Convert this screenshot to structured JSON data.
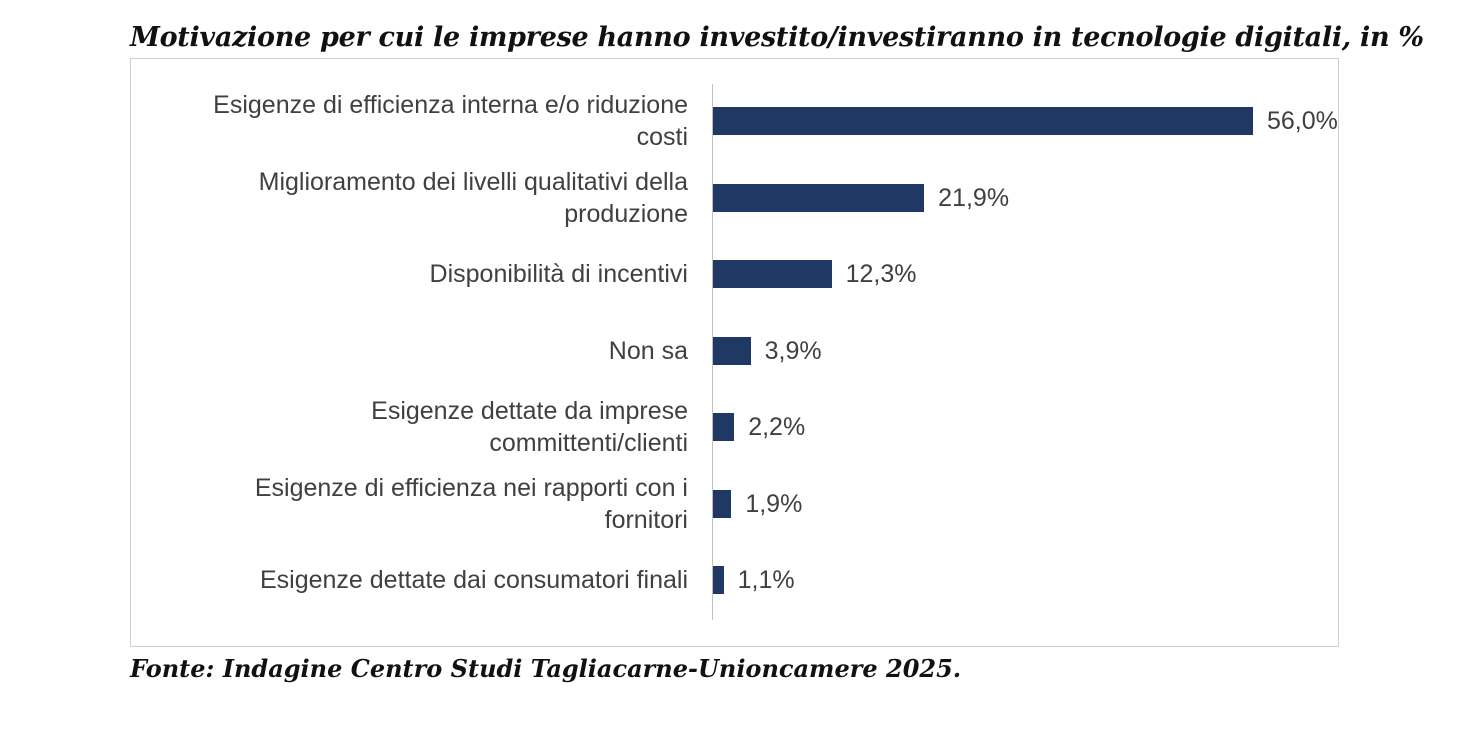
{
  "title": "Motivazione per cui le imprese hanno investito/investiranno in tecnologie digitali, in %",
  "source": "Fonte: Indagine Centro Studi Tagliacarne-Unioncamere 2025.",
  "colors": {
    "bar": "#1f3864",
    "text": "#404040"
  },
  "chart_data": {
    "type": "bar",
    "orientation": "horizontal",
    "categories": [
      [
        "Esigenze di efficienza interna e/o riduzione",
        "costi"
      ],
      [
        "Miglioramento dei livelli qualitativi della",
        "produzione"
      ],
      [
        "Disponibilità di incentivi"
      ],
      [
        "Non sa"
      ],
      [
        "Esigenze dettate da imprese",
        "committenti/clienti"
      ],
      [
        "Esigenze di efficienza nei rapporti con i",
        "fornitori"
      ],
      [
        "Esigenze dettate dai consumatori finali"
      ]
    ],
    "values": [
      56.0,
      21.9,
      12.3,
      3.9,
      2.2,
      1.9,
      1.1
    ],
    "value_labels": [
      "56,0%",
      "21,9%",
      "12,3%",
      "3,9%",
      "2,2%",
      "1,9%",
      "1,1%"
    ],
    "title": "Motivazione per cui le imprese hanno investito/investiranno in tecnologie digitali, in %",
    "grid": false,
    "legend": "none"
  }
}
